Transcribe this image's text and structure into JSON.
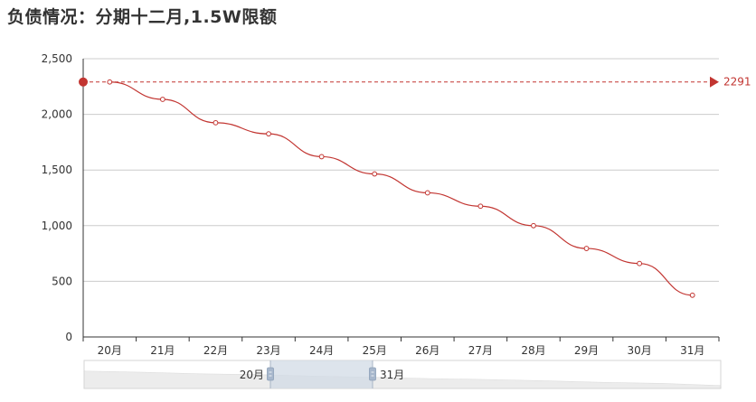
{
  "title": "负债情况：分期十二月,1.5W限额",
  "colors": {
    "series": "#c23531",
    "grid": "#cccccc",
    "axis": "#333333",
    "zoom_fill": "#d2dbe6",
    "zoom_shadow": "#e4e4e4"
  },
  "chart_data": {
    "type": "line",
    "categories": [
      "20月",
      "21月",
      "22月",
      "23月",
      "24月",
      "25月",
      "26月",
      "27月",
      "28月",
      "29月",
      "30月",
      "31月"
    ],
    "series": [
      {
        "values": [
          2291,
          2135,
          1925,
          1825,
          1620,
          1465,
          1295,
          1175,
          1000,
          795,
          660,
          375
        ]
      }
    ],
    "ylim": [
      0,
      2500
    ],
    "yticks": [
      0,
      500,
      1000,
      1500,
      2000,
      2500
    ],
    "ytick_labels": [
      "0",
      "500",
      "1,000",
      "1,500",
      "2,000",
      "2,500"
    ],
    "mark_line": {
      "value": 2291,
      "label": "2291"
    },
    "smooth": true,
    "grid": true,
    "data_zoom": {
      "start_label": "20月",
      "end_label": "31月"
    }
  }
}
